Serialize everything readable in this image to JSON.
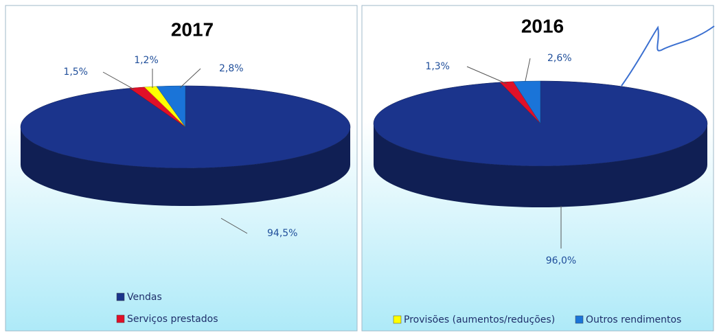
{
  "chart_data": [
    {
      "type": "pie3d",
      "title": "2017",
      "categories": [
        "Vendas",
        "Serviços prestados",
        "Provisões (aumentos/reduções)",
        "Outros rendimentos"
      ],
      "values": [
        94.5,
        1.5,
        1.2,
        2.8
      ],
      "value_labels": [
        "94,5%",
        "1,5%",
        "1,2%",
        "2,8%"
      ],
      "colors": [
        "#1b348c",
        "#e01028",
        "#ffff00",
        "#1a74d8"
      ]
    },
    {
      "type": "pie3d",
      "title": "2016",
      "values": [
        96.0,
        1.3,
        null,
        2.6
      ],
      "value_labels": [
        "96,0%",
        "1,3%",
        null,
        "2,6%"
      ],
      "colors": [
        "#1b348c",
        "#e01028",
        "#ffff00",
        "#1a74d8"
      ]
    }
  ]
}
